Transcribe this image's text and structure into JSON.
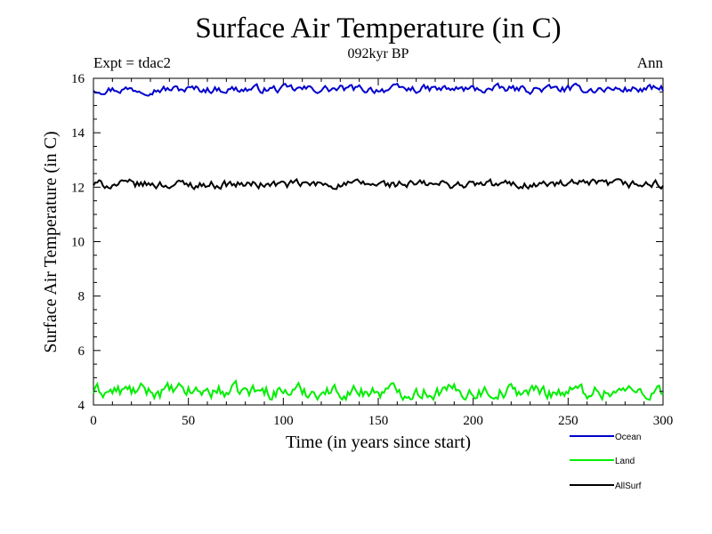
{
  "chart_data": {
    "type": "line",
    "title": "Surface Air Temperature (in C)",
    "subtitle": "092kyr BP",
    "experiment_label": "Expt = tdac2",
    "season_label": "Ann",
    "xlabel": "Time (in years since start)",
    "ylabel": "Surface Air Temperature (in C)",
    "xlim": [
      0,
      300
    ],
    "ylim": [
      4,
      16
    ],
    "xticks": [
      0,
      50,
      100,
      150,
      200,
      250,
      300
    ],
    "yticks": [
      4,
      6,
      8,
      10,
      12,
      14,
      16
    ],
    "legend_position": "bottom-right-outside",
    "series": [
      {
        "name": "Ocean",
        "color": "#0000cc",
        "mean": 15.6,
        "amplitude": 0.12,
        "x_range": [
          0,
          300
        ],
        "points": 300
      },
      {
        "name": "Land",
        "color": "#00ee00",
        "mean": 4.5,
        "amplitude": 0.22,
        "x_range": [
          0,
          300
        ],
        "points": 300
      },
      {
        "name": "AllSurf",
        "color": "#000000",
        "mean": 12.1,
        "amplitude": 0.13,
        "x_range": [
          0,
          300
        ],
        "points": 300
      }
    ]
  }
}
